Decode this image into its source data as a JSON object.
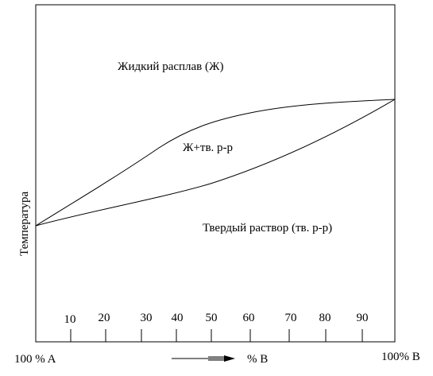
{
  "diagram": {
    "y_axis_label": "Температура",
    "region_liquid": "Жидкий расплав (Ж)",
    "region_two_phase": "Ж+тв. р-р",
    "region_solid": "Твердый раствор (тв. р-р)",
    "x_left_label": "100 % A",
    "x_right_label": "100% B",
    "x_arrow_label": "% B",
    "x_ticks": [
      "10",
      "20",
      "30",
      "40",
      "50",
      "60",
      "70",
      "80",
      "90"
    ],
    "line_color": "#000000"
  }
}
